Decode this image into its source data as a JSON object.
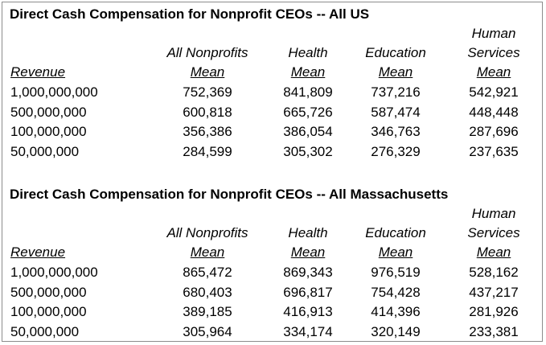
{
  "tables": [
    {
      "title": "Direct Cash Compensation for Nonprofit CEOs -- All US",
      "header_top": [
        "",
        "",
        "",
        "",
        "Human"
      ],
      "header_mid": [
        "",
        "All Nonprofits",
        "Health",
        "Education",
        "Services"
      ],
      "header_bottom": [
        "Revenue",
        "Mean",
        "Mean",
        "Mean",
        "Mean"
      ],
      "rows": [
        [
          "1,000,000,000",
          "752,369",
          "841,809",
          "737,216",
          "542,921"
        ],
        [
          "500,000,000",
          "600,818",
          "665,726",
          "587,474",
          "448,448"
        ],
        [
          "100,000,000",
          "356,386",
          "386,054",
          "346,763",
          "287,696"
        ],
        [
          "50,000,000",
          "284,599",
          "305,302",
          "276,329",
          "237,635"
        ]
      ]
    },
    {
      "title": "Direct Cash Compensation for Nonprofit CEOs -- All Massachusetts",
      "header_top": [
        "",
        "",
        "",
        "",
        "Human"
      ],
      "header_mid": [
        "",
        "All Nonprofits",
        "Health",
        "Education",
        "Services"
      ],
      "header_bottom": [
        "Revenue",
        "Mean",
        "Mean",
        "Mean",
        "Mean"
      ],
      "rows": [
        [
          "1,000,000,000",
          "865,472",
          "869,343",
          "976,519",
          "528,162"
        ],
        [
          "500,000,000",
          "680,403",
          "696,817",
          "754,428",
          "437,217"
        ],
        [
          "100,000,000",
          "389,185",
          "416,913",
          "414,396",
          "281,926"
        ],
        [
          "50,000,000",
          "305,964",
          "334,174",
          "320,149",
          "233,381"
        ]
      ]
    }
  ]
}
